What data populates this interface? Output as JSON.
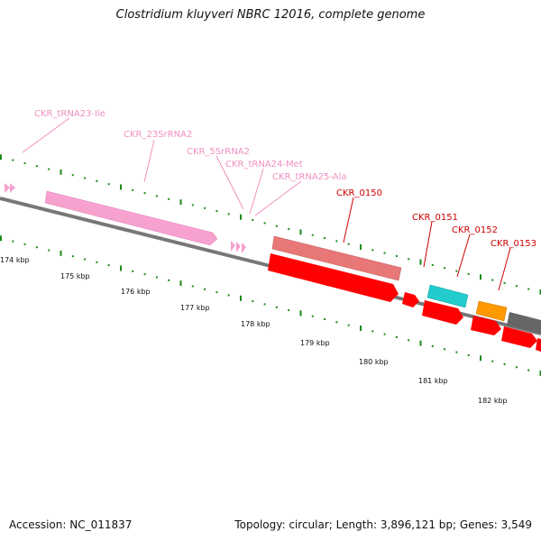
{
  "title": "Clostridium kluyveri NBRC 12016, complete genome",
  "footer": {
    "accession": "Accession: NC_011837",
    "summary": "Topology: circular; Length: 3,896,121 bp; Genes: 3,549"
  },
  "colors": {
    "rrna": "#f7a1cf",
    "rrna_label": "#f090c0",
    "cds": "#ff0000",
    "cds_label": "#cc0000",
    "cds_light": "#e87878",
    "cyan": "#22cccc",
    "orange": "#ff9900",
    "grey": "#666666",
    "tick": "#1a8a1a"
  },
  "gene_labels": [
    {
      "text": "CKR_tRNA23-Ile",
      "kind": "rna"
    },
    {
      "text": "CKR_23SrRNA2",
      "kind": "rna"
    },
    {
      "text": "CKR_5SrRNA2",
      "kind": "rna"
    },
    {
      "text": "CKR_tRNA24-Met",
      "kind": "rna"
    },
    {
      "text": "CKR_tRNA25-Ala",
      "kind": "rna"
    },
    {
      "text": "CKR_0150",
      "kind": "cds"
    },
    {
      "text": "CKR_0151",
      "kind": "cds"
    },
    {
      "text": "CKR_0152",
      "kind": "cds"
    },
    {
      "text": "CKR_0153",
      "kind": "cds"
    }
  ],
  "scale_labels": [
    "174 kbp",
    "175 kbp",
    "176 kbp",
    "177 kbp",
    "178 kbp",
    "179 kbp",
    "180 kbp",
    "181 kbp",
    "182 kbp"
  ]
}
